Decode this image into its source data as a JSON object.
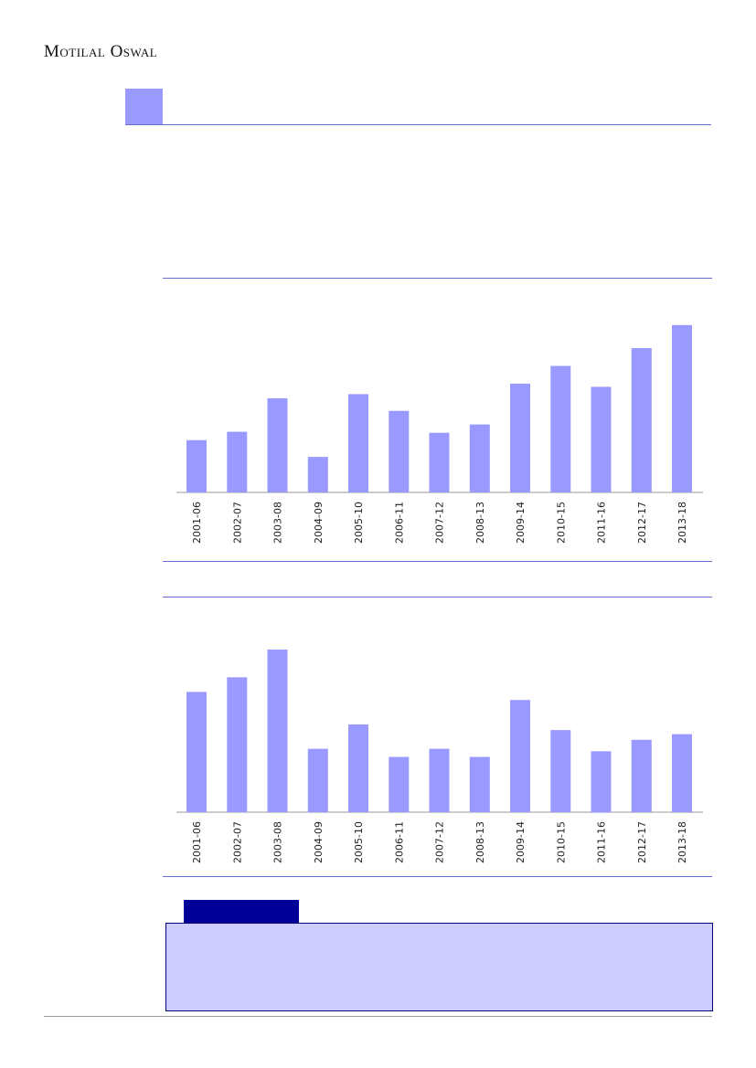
{
  "header": {
    "brand": "Motilal Oswal"
  },
  "colors": {
    "bar": "#9999ff",
    "rule": "#6b6bd6",
    "tab": "#000099",
    "note_bg": "#ccccff"
  },
  "chart_data": [
    {
      "type": "bar",
      "categories": [
        "2001-06",
        "2002-07",
        "2003-08",
        "2004-09",
        "2005-10",
        "2006-11",
        "2007-12",
        "2008-13",
        "2009-14",
        "2010-15",
        "2011-16",
        "2012-17",
        "2013-18"
      ],
      "values": [
        25,
        29,
        45,
        17,
        47,
        39,
        28.5,
        32.5,
        52,
        60.5,
        50.5,
        69,
        80
      ],
      "ylim": [
        0,
        100
      ],
      "grid": false
    },
    {
      "type": "bar",
      "categories": [
        "2001-06",
        "2002-07",
        "2003-08",
        "2004-09",
        "2005-10",
        "2006-11",
        "2007-12",
        "2008-13",
        "2009-14",
        "2010-15",
        "2011-16",
        "2012-17",
        "2013-18"
      ],
      "values": [
        74,
        83,
        100,
        39,
        54,
        34,
        39,
        34,
        69,
        50.5,
        37.5,
        44.5,
        48
      ],
      "ylim": [
        0,
        100
      ],
      "grid": false
    }
  ]
}
